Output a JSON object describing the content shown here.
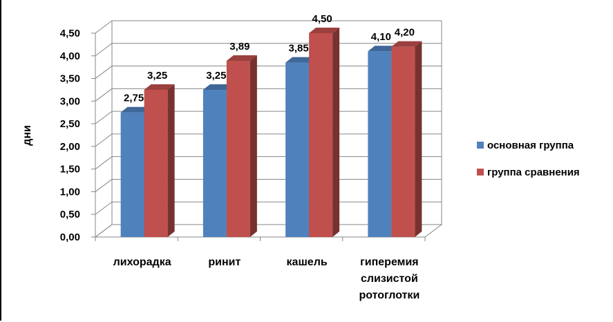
{
  "chart_data": {
    "type": "bar",
    "style": "3d-clustered-column",
    "categories": [
      [
        "лихорадка"
      ],
      [
        "ринит"
      ],
      [
        "кашель"
      ],
      [
        "гиперемия",
        "слизистой",
        "ротоглотки"
      ]
    ],
    "series": [
      {
        "name": "основная группа",
        "values": [
          2.75,
          3.25,
          3.85,
          4.1
        ],
        "labels": [
          "2,75",
          "3,25",
          "3,85",
          "4,10"
        ],
        "color": "#4F81BD"
      },
      {
        "name": "группа сравнения",
        "values": [
          3.25,
          3.89,
          4.5,
          4.2
        ],
        "labels": [
          "3,25",
          "3,89",
          "4,50",
          "4,20"
        ],
        "color": "#C0504D"
      }
    ],
    "yticks": [
      "0,00",
      "0,50",
      "1,00",
      "1,50",
      "2,00",
      "2,50",
      "3,00",
      "3,50",
      "4,00",
      "4,50"
    ],
    "ylabel": "дни",
    "ylim": [
      0,
      4.5
    ],
    "grid": true,
    "legend_position": "right"
  }
}
